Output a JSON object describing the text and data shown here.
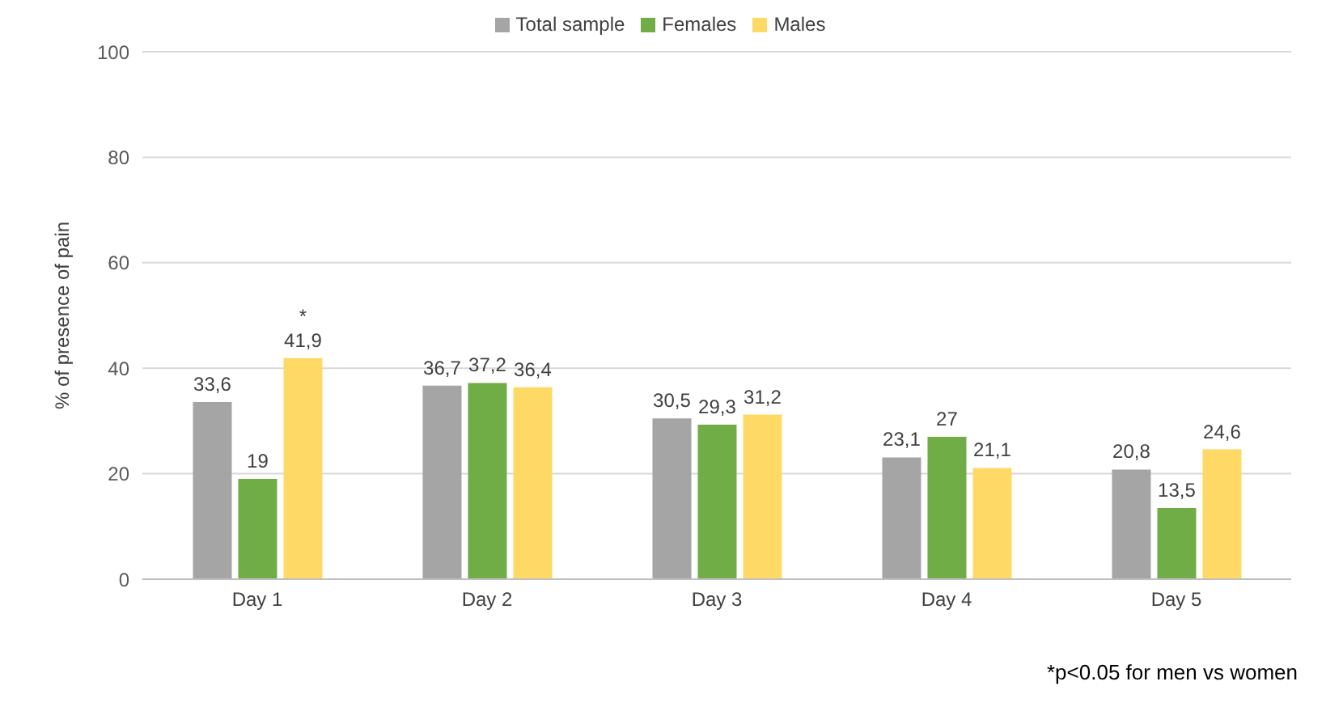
{
  "chart_data": {
    "type": "bar",
    "ylabel": "% of presence of pain",
    "categories": [
      "Day 1",
      "Day 2",
      "Day 3",
      "Day 4",
      "Day 5"
    ],
    "series": [
      {
        "name": "Total sample",
        "color": "#a5a5a5",
        "values": [
          33.6,
          36.7,
          30.5,
          23.1,
          20.8
        ],
        "value_labels": [
          "33,6",
          "36,7",
          "30,5",
          "23,1",
          "20,8"
        ]
      },
      {
        "name": "Females",
        "color": "#70ad47",
        "values": [
          19,
          37.2,
          29.3,
          27,
          13.5
        ],
        "value_labels": [
          "19",
          "37,2",
          "29,3",
          "27",
          "13,5"
        ]
      },
      {
        "name": "Males",
        "color": "#ffd966",
        "values": [
          41.9,
          36.4,
          31.2,
          21.1,
          24.6
        ],
        "value_labels": [
          "41,9",
          "36,4",
          "31,2",
          "21,1",
          "24,6"
        ]
      }
    ],
    "ylim": [
      0,
      100
    ],
    "yticks": [
      0,
      20,
      40,
      60,
      80,
      100
    ],
    "grid": "y",
    "legend": "top",
    "annotations": [
      "*",
      "*p<0.05 for men vs women"
    ]
  }
}
